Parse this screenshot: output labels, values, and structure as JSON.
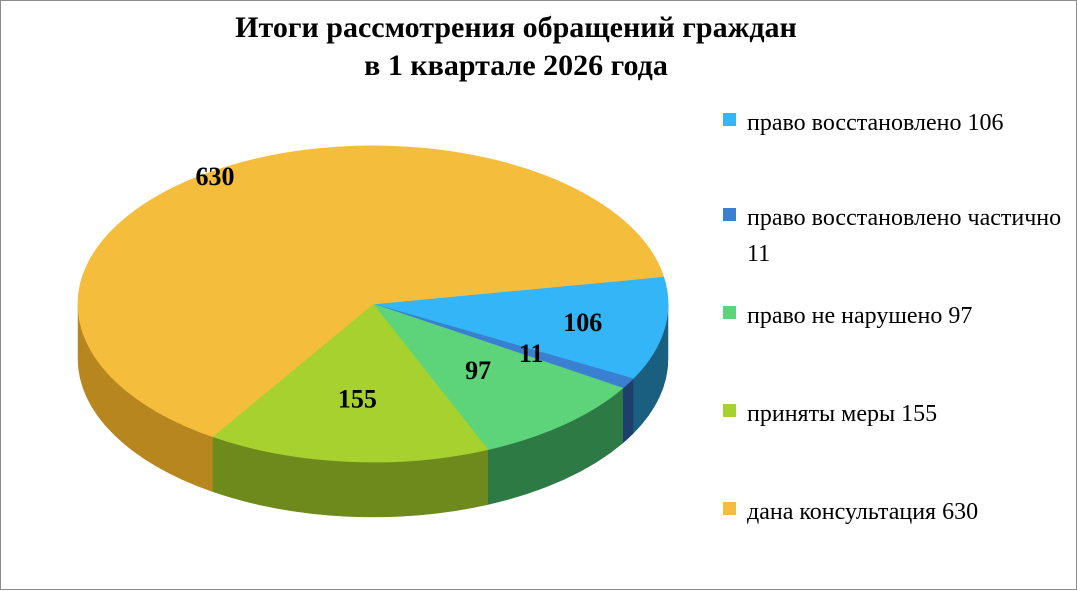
{
  "chart_data": {
    "type": "pie",
    "title_line1": "Итоги рассмотрения обращений граждан",
    "title_line2": "в 1 квартале 2026 года",
    "slices": [
      {
        "label": "право восстановлено",
        "legend": "право восстановлено 106",
        "value": 106,
        "color": "#33b5f7",
        "side": "#1a5e80"
      },
      {
        "label": "право восстановлено частично",
        "legend": "право восстановлено частично 11",
        "value": 11,
        "color": "#3a7fd0",
        "side": "#1e3f6b"
      },
      {
        "label": "право не нарушено",
        "legend": "право не нарушено 97",
        "value": 97,
        "color": "#5dd37a",
        "side": "#2e7a45"
      },
      {
        "label": "приняты меры",
        "legend": "приняты меры 155",
        "value": 155,
        "color": "#a6d12e",
        "side": "#6e8a1c"
      },
      {
        "label": "дана консультация",
        "legend": "дана консультация 630",
        "value": 630,
        "color": "#f5bd3c",
        "side": "#b8861f"
      }
    ],
    "legend_placement": "right"
  }
}
